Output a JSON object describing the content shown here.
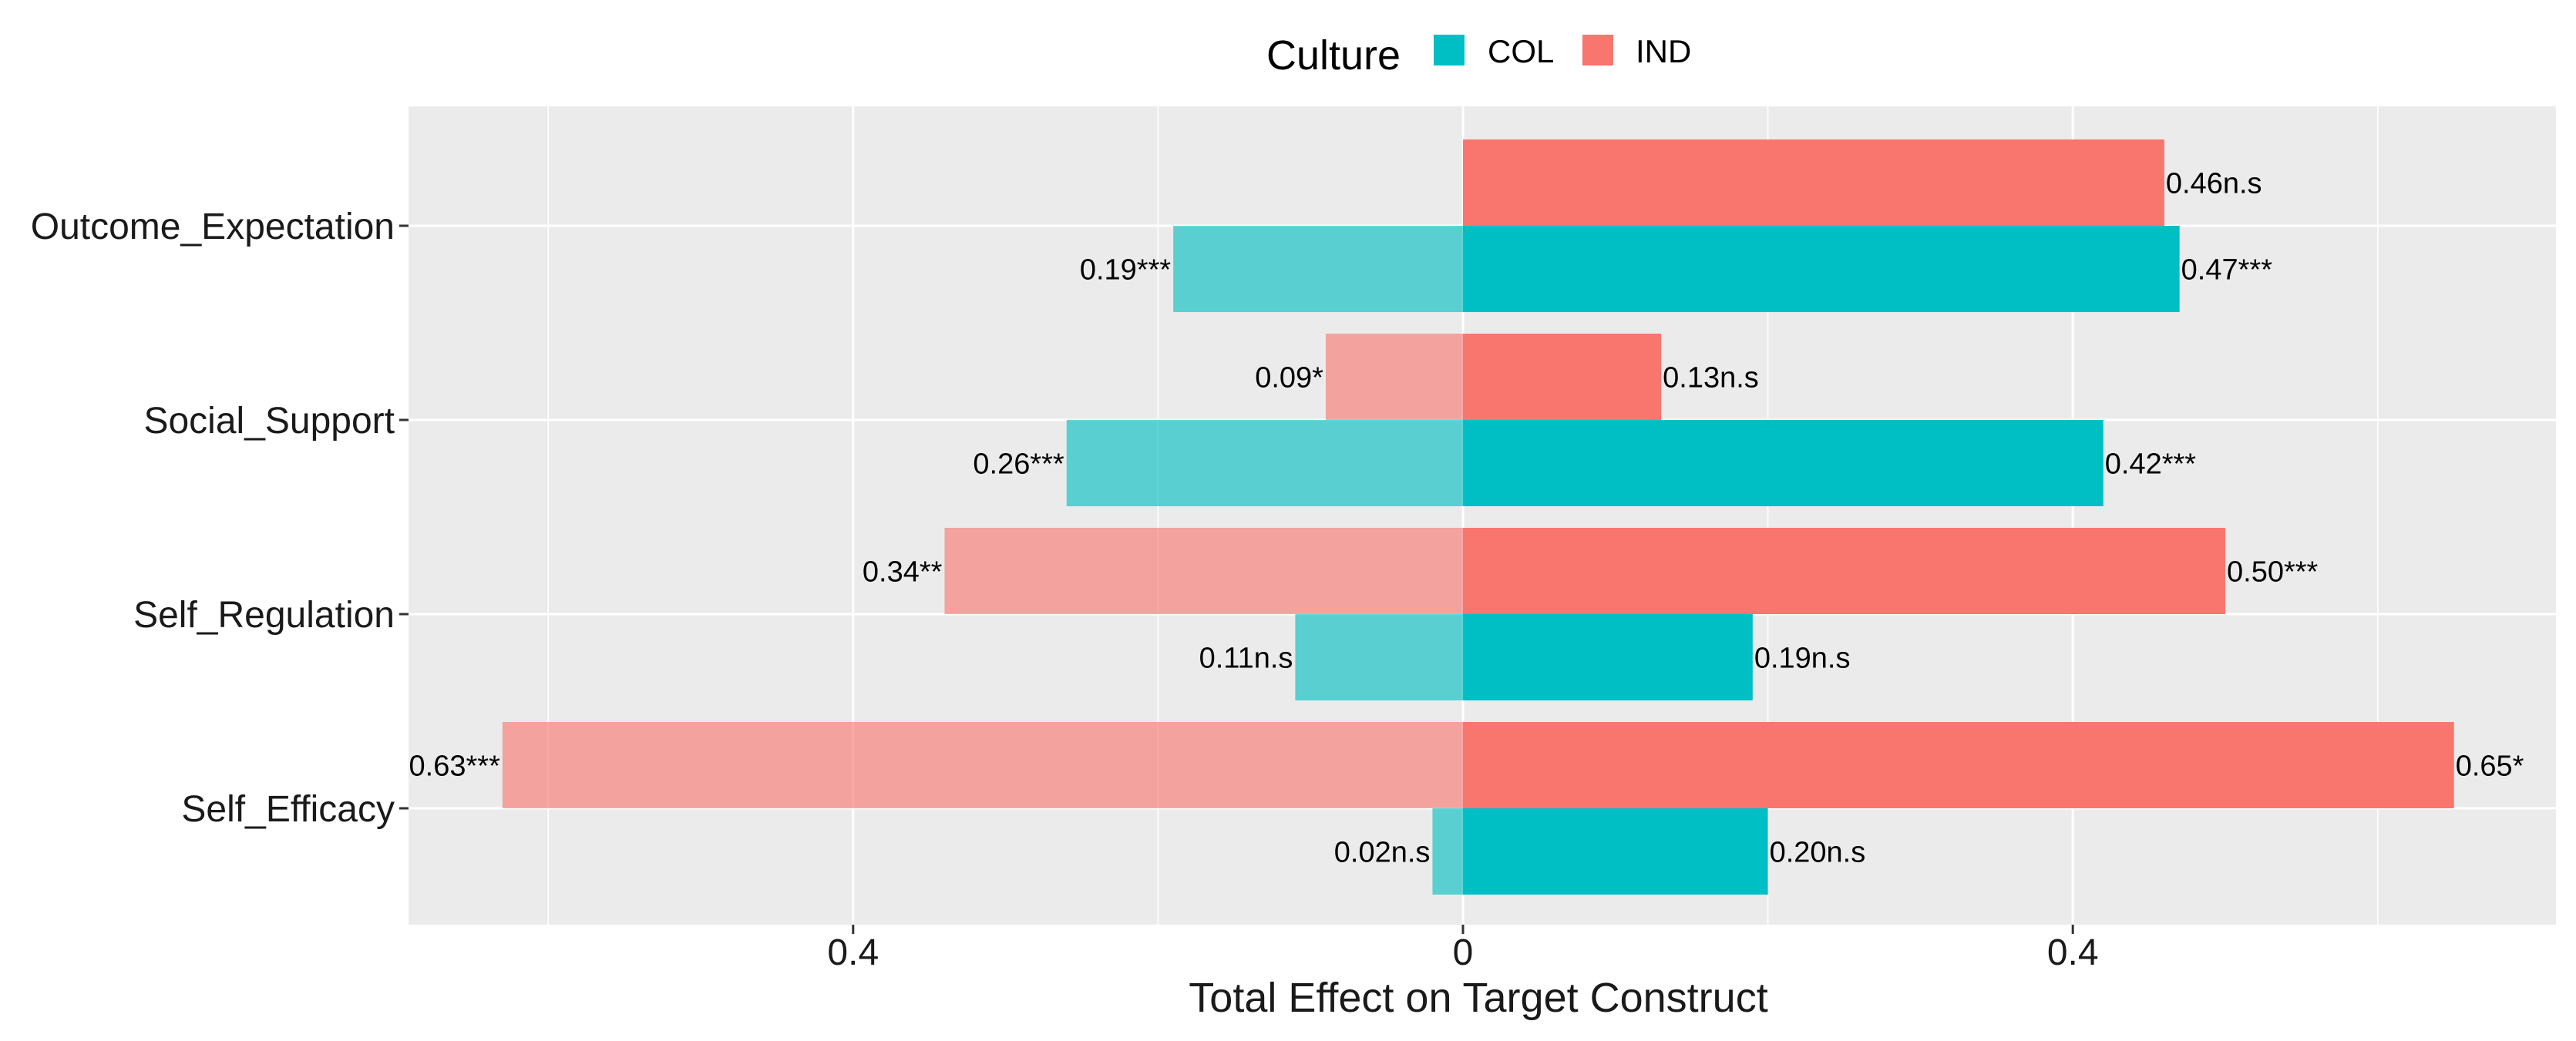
{
  "chart_data": {
    "type": "bar",
    "orientation": "horizontal-diverging",
    "xlabel": "Total Effect on Target Construct",
    "ylabel": "",
    "xlim": [
      -0.69,
      0.69
    ],
    "x_ticks": [
      {
        "value": -0.4,
        "label": "0.4"
      },
      {
        "value": 0.0,
        "label": "0"
      },
      {
        "value": 0.4,
        "label": "0.4"
      }
    ],
    "grid": true,
    "legend": {
      "title": "Culture",
      "position": "top",
      "entries": [
        {
          "name": "COL",
          "color": "#00BFC4"
        },
        {
          "name": "IND",
          "color": "#F8766D"
        }
      ]
    },
    "categories": [
      "Outcome_Expectation",
      "Social_Support",
      "Self_Regulation",
      "Self_Efficacy"
    ],
    "series": [
      {
        "name": "COL",
        "color": "#00BFC4",
        "left_values": [
          0.19,
          0.26,
          0.11,
          0.02
        ],
        "left_labels": [
          "0.19***",
          "0.26***",
          "0.11n.s",
          "0.02n.s"
        ],
        "right_values": [
          0.47,
          0.42,
          0.19,
          0.2
        ],
        "right_labels": [
          "0.47***",
          "0.42***",
          "0.19n.s",
          "0.20n.s"
        ]
      },
      {
        "name": "IND",
        "color": "#F8766D",
        "left_values": [
          0.0,
          0.09,
          0.34,
          0.63
        ],
        "left_labels": [
          "",
          "0.09*",
          "0.34**",
          "0.63***"
        ],
        "right_values": [
          0.46,
          0.13,
          0.5,
          0.65
        ],
        "right_labels": [
          "0.46n.s",
          "0.13n.s",
          "0.50***",
          "0.65*"
        ]
      }
    ]
  }
}
